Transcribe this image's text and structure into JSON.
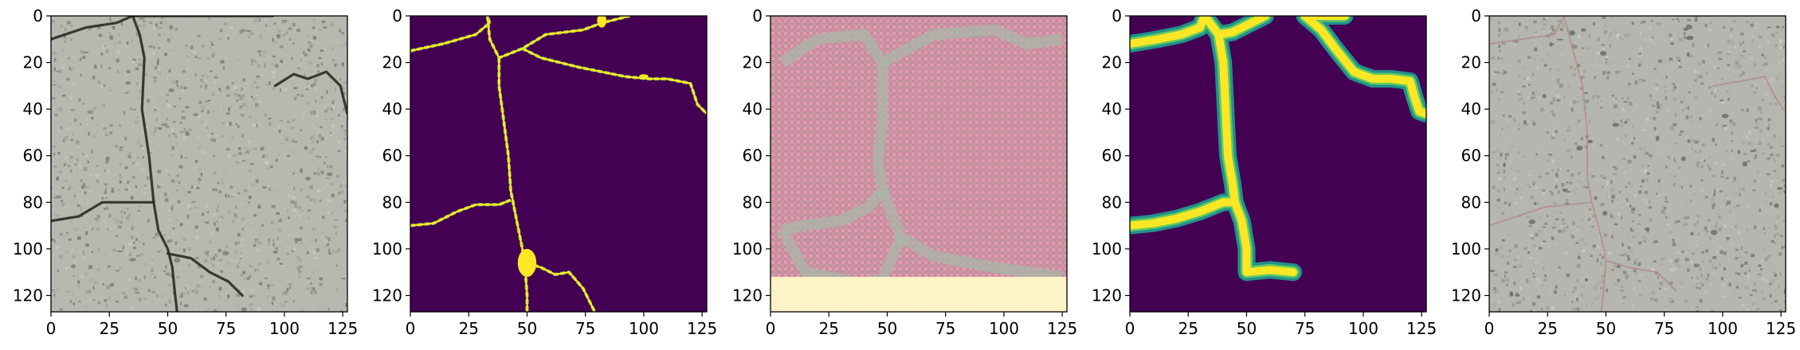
{
  "chart_data": [
    {
      "type": "heatmap",
      "image_kind": "photo",
      "content": "concrete surface photo with dark cracks",
      "xlim": [
        0,
        127
      ],
      "ylim": [
        127,
        0
      ],
      "xticks": [
        "0",
        "25",
        "50",
        "75",
        "100",
        "125"
      ],
      "yticks": [
        "0",
        "20",
        "40",
        "60",
        "80",
        "100",
        "120"
      ],
      "colors": {
        "base": "#b8b8b0",
        "crack": "#2a2a25",
        "speck": "#7a7a72"
      },
      "cracks": [
        [
          [
            0,
            10
          ],
          [
            15,
            5
          ],
          [
            28,
            3
          ],
          [
            35,
            0
          ]
        ],
        [
          [
            35,
            0
          ],
          [
            38,
            8
          ],
          [
            40,
            18
          ],
          [
            39,
            40
          ],
          [
            42,
            60
          ],
          [
            44,
            80
          ],
          [
            46,
            92
          ],
          [
            50,
            100
          ],
          [
            52,
            108
          ],
          [
            53,
            118
          ],
          [
            54,
            127
          ]
        ],
        [
          [
            0,
            88
          ],
          [
            12,
            86
          ],
          [
            22,
            80
          ],
          [
            32,
            80
          ],
          [
            44,
            80
          ]
        ],
        [
          [
            50,
            102
          ],
          [
            60,
            104
          ],
          [
            68,
            110
          ],
          [
            76,
            114
          ],
          [
            82,
            120
          ]
        ],
        [
          [
            35,
            0
          ],
          [
            60,
            0
          ],
          [
            82,
            0
          ],
          [
            95,
            0
          ]
        ],
        [
          [
            96,
            30
          ],
          [
            104,
            25
          ],
          [
            110,
            27
          ],
          [
            118,
            24
          ],
          [
            124,
            30
          ],
          [
            127,
            42
          ]
        ]
      ]
    },
    {
      "type": "heatmap",
      "image_kind": "mask",
      "content": "binary crack mask (thin lines)",
      "xlim": [
        0,
        127
      ],
      "ylim": [
        127,
        0
      ],
      "xticks": [
        "0",
        "25",
        "50",
        "75",
        "100",
        "125"
      ],
      "yticks": [
        "0",
        "20",
        "40",
        "60",
        "80",
        "100",
        "120"
      ],
      "colors": {
        "background": "#440154",
        "foreground": "#fde725",
        "edge": "#7ad151"
      },
      "lines": [
        [
          [
            0,
            15
          ],
          [
            14,
            12
          ],
          [
            28,
            8
          ],
          [
            34,
            3
          ],
          [
            33,
            0
          ]
        ],
        [
          [
            33,
            0
          ],
          [
            34,
            10
          ],
          [
            38,
            18
          ],
          [
            48,
            14
          ],
          [
            58,
            8
          ],
          [
            74,
            6
          ],
          [
            82,
            3
          ],
          [
            94,
            0
          ]
        ],
        [
          [
            38,
            18
          ],
          [
            38,
            30
          ],
          [
            40,
            45
          ],
          [
            42,
            60
          ],
          [
            43,
            75
          ],
          [
            44,
            80
          ],
          [
            46,
            90
          ],
          [
            48,
            100
          ],
          [
            49,
            106
          ],
          [
            50,
            120
          ],
          [
            50,
            127
          ]
        ],
        [
          [
            0,
            90
          ],
          [
            10,
            89
          ],
          [
            20,
            84
          ],
          [
            28,
            81
          ],
          [
            38,
            81
          ],
          [
            43,
            79
          ]
        ],
        [
          [
            50,
            106
          ],
          [
            56,
            108
          ],
          [
            62,
            111
          ],
          [
            68,
            110
          ],
          [
            74,
            117
          ],
          [
            79,
            127
          ]
        ],
        [
          [
            48,
            14
          ],
          [
            56,
            18
          ],
          [
            72,
            22
          ],
          [
            92,
            26
          ],
          [
            102,
            27
          ],
          [
            110,
            27
          ],
          [
            120,
            29
          ],
          [
            123,
            38
          ],
          [
            127,
            42
          ]
        ]
      ],
      "blobs": [
        [
          50,
          106,
          4,
          6
        ],
        [
          82,
          2,
          2,
          3
        ],
        [
          100,
          26,
          2,
          1
        ]
      ]
    },
    {
      "type": "heatmap",
      "image_kind": "generated",
      "content": "noisy generated texture with checkerboard artifacts",
      "xlim": [
        0,
        127
      ],
      "ylim": [
        127,
        0
      ],
      "xticks": [
        "0",
        "25",
        "50",
        "75",
        "100",
        "125"
      ],
      "yticks": [
        "0",
        "20",
        "40",
        "60",
        "80",
        "100",
        "120"
      ],
      "colors": {
        "base": "#cf8aa0",
        "light": "#e6b8c4",
        "grain": "#9cc9a8",
        "seam": "#a8b6a8",
        "band": "#fff9c8"
      },
      "seams": [
        [
          [
            5,
            20
          ],
          [
            20,
            10
          ],
          [
            40,
            8
          ],
          [
            48,
            20
          ],
          [
            48,
            45
          ],
          [
            46,
            62
          ],
          [
            48,
            75
          ],
          [
            42,
            82
          ],
          [
            30,
            88
          ],
          [
            14,
            90
          ],
          [
            5,
            92
          ]
        ],
        [
          [
            48,
            20
          ],
          [
            70,
            8
          ],
          [
            96,
            6
          ],
          [
            110,
            12
          ],
          [
            125,
            10
          ]
        ],
        [
          [
            48,
            75
          ],
          [
            56,
            95
          ],
          [
            70,
            103
          ],
          [
            96,
            108
          ],
          [
            125,
            112
          ]
        ],
        [
          [
            5,
            92
          ],
          [
            15,
            110
          ],
          [
            40,
            115
          ],
          [
            48,
            113
          ],
          [
            56,
            95
          ]
        ]
      ],
      "band_rows": [
        112,
        127
      ]
    },
    {
      "type": "heatmap",
      "image_kind": "soft-mask",
      "content": "smooth crack probability map (thick lines)",
      "xlim": [
        0,
        127
      ],
      "ylim": [
        127,
        0
      ],
      "xticks": [
        "0",
        "25",
        "50",
        "75",
        "100",
        "125"
      ],
      "yticks": [
        "0",
        "20",
        "40",
        "60",
        "80",
        "100",
        "120"
      ],
      "colors": {
        "background": "#440154",
        "halo": "#21918c",
        "mid": "#5ec962",
        "core": "#fde725"
      },
      "lines": [
        [
          [
            0,
            12
          ],
          [
            12,
            10
          ],
          [
            22,
            8
          ],
          [
            30,
            5
          ],
          [
            32,
            0
          ]
        ],
        [
          [
            32,
            0
          ],
          [
            38,
            8
          ],
          [
            44,
            7
          ],
          [
            50,
            4
          ],
          [
            58,
            0
          ]
        ],
        [
          [
            38,
            8
          ],
          [
            40,
            20
          ],
          [
            41,
            40
          ],
          [
            42,
            60
          ],
          [
            44,
            72
          ],
          [
            45,
            80
          ]
        ],
        [
          [
            0,
            90
          ],
          [
            10,
            89
          ],
          [
            20,
            87
          ],
          [
            30,
            84
          ],
          [
            40,
            80
          ],
          [
            45,
            80
          ]
        ],
        [
          [
            45,
            80
          ],
          [
            48,
            88
          ],
          [
            50,
            100
          ],
          [
            50,
            110
          ],
          [
            60,
            109
          ],
          [
            70,
            110
          ]
        ],
        [
          [
            75,
            0
          ],
          [
            82,
            6
          ],
          [
            88,
            14
          ],
          [
            96,
            24
          ],
          [
            104,
            27
          ],
          [
            112,
            27
          ],
          [
            120,
            28
          ],
          [
            122,
            35
          ],
          [
            124,
            41
          ],
          [
            127,
            42
          ]
        ],
        [
          [
            75,
            0
          ],
          [
            85,
            0
          ],
          [
            92,
            0
          ]
        ]
      ]
    },
    {
      "type": "heatmap",
      "image_kind": "photo",
      "content": "concrete photo with faint reddish crack traces",
      "xlim": [
        0,
        127
      ],
      "ylim": [
        127,
        0
      ],
      "xticks": [
        "0",
        "25",
        "50",
        "75",
        "100",
        "125"
      ],
      "yticks": [
        "0",
        "20",
        "40",
        "60",
        "80",
        "100",
        "120"
      ],
      "colors": {
        "base": "#b6b6b0",
        "crack": "#b08a86",
        "speck": "#6a6a64"
      },
      "cracks": [
        [
          [
            0,
            12
          ],
          [
            14,
            10
          ],
          [
            28,
            8
          ],
          [
            32,
            0
          ]
        ],
        [
          [
            32,
            0
          ],
          [
            36,
            15
          ],
          [
            40,
            30
          ],
          [
            42,
            50
          ],
          [
            42,
            70
          ],
          [
            44,
            80
          ],
          [
            48,
            95
          ],
          [
            50,
            105
          ],
          [
            49,
            118
          ],
          [
            48,
            127
          ]
        ],
        [
          [
            0,
            90
          ],
          [
            12,
            86
          ],
          [
            24,
            82
          ],
          [
            44,
            80
          ]
        ],
        [
          [
            50,
            105
          ],
          [
            60,
            108
          ],
          [
            72,
            110
          ],
          [
            80,
            118
          ]
        ],
        [
          [
            96,
            30
          ],
          [
            108,
            28
          ],
          [
            118,
            26
          ],
          [
            122,
            34
          ],
          [
            126,
            40
          ]
        ],
        [
          [
            80,
            0
          ],
          [
            96,
            0
          ]
        ]
      ]
    }
  ]
}
